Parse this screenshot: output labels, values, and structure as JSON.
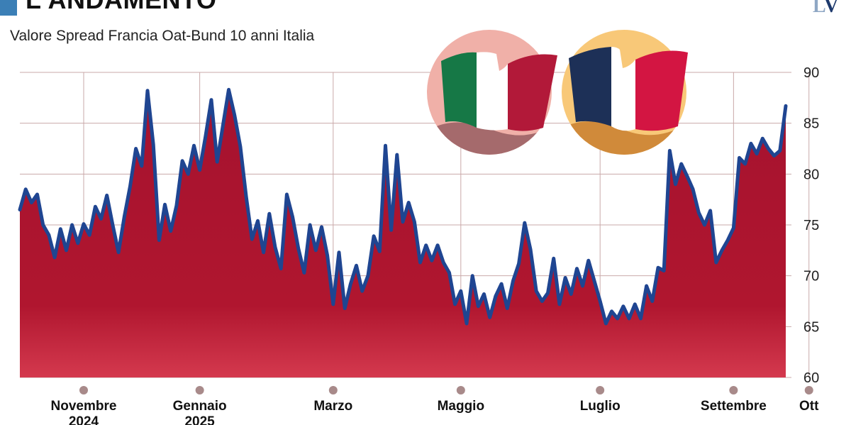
{
  "header": {
    "title": "L'ANDAMENTO",
    "subtitle": "Valore Spread Francia Oat-Bund 10 anni Italia",
    "logo_left": "L",
    "logo_right": "V"
  },
  "colors": {
    "area_top": "#a5122f",
    "area_bottom": "#c8283f",
    "line": "#1f4591",
    "grid": "#c9a9a9",
    "italy_bg": "#f0b0a8",
    "france_bg": "#f8c878"
  },
  "icons": [
    "italy-flag-icon",
    "france-flag-icon"
  ],
  "chart_data": {
    "type": "area",
    "title": "Valore Spread Francia Oat-Bund 10 anni Italia",
    "xlabel": "",
    "ylabel": "",
    "ylim": [
      60,
      90
    ],
    "yticks": [
      60,
      65,
      70,
      75,
      80,
      85,
      90
    ],
    "grid": true,
    "x_tick_labels": [
      {
        "label": "Novembre",
        "sub": "2024",
        "index": 11
      },
      {
        "label": "Gennaio",
        "sub": "2025",
        "index": 31
      },
      {
        "label": "Marzo",
        "sub": "",
        "index": 54
      },
      {
        "label": "Maggio",
        "sub": "",
        "index": 76
      },
      {
        "label": "Luglio",
        "sub": "",
        "index": 100
      },
      {
        "label": "Settembre",
        "sub": "",
        "index": 123
      },
      {
        "label": "Ott",
        "sub": "",
        "index": 136
      }
    ],
    "series": [
      {
        "values": [
          76.5,
          78.5,
          77.2,
          78,
          75,
          74,
          71.8,
          74.6,
          72.5,
          75,
          73.2,
          75.1,
          74,
          76.8,
          75.6,
          77.9,
          75,
          72.3,
          75.8,
          78.8,
          82.5,
          80.8,
          88.2,
          82.9,
          73.5,
          77,
          74.4,
          76.9,
          81.3,
          80,
          82.8,
          80.4,
          83.7,
          87.3,
          81.2,
          84.8,
          88.3,
          85.8,
          82.7,
          77.8,
          73.6,
          75.4,
          72.3,
          76.1,
          72.8,
          70.7,
          78,
          75.8,
          72.7,
          70.3,
          75,
          72.5,
          74.8,
          72,
          67.2,
          72.3,
          66.8,
          69.2,
          71,
          68.5,
          70,
          73.9,
          72.4,
          82.8,
          74.5,
          81.9,
          75.3,
          77.2,
          75.3,
          71.3,
          73,
          71.5,
          73,
          71.3,
          70.3,
          67.2,
          68.5,
          65.3,
          70,
          67,
          68.2,
          65.9,
          68,
          69.2,
          66.8,
          69.5,
          71.2,
          75.2,
          72.6,
          68.5,
          67.5,
          68.3,
          71.7,
          67.2,
          69.8,
          68.2,
          70.7,
          69,
          71.5,
          69.5,
          67.5,
          65.3,
          66.5,
          65.8,
          67,
          65.8,
          67.2,
          65.8,
          69,
          67.5,
          70.8,
          70.5,
          82.3,
          79,
          81,
          79.8,
          78.5,
          76.2,
          75,
          76.4,
          71.3,
          72.5,
          73.5,
          74.7,
          81.6,
          81,
          83,
          82,
          83.5,
          82.5,
          81.8,
          82.3,
          86.7
        ]
      }
    ]
  }
}
